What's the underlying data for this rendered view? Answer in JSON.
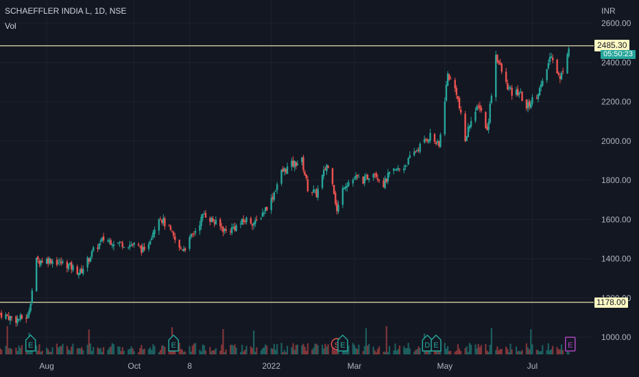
{
  "header": {
    "symbol": "SCHAEFFLER INDIA L, 1D, NSE",
    "volume_label": "Vol",
    "currency": "INR"
  },
  "price_tags": {
    "last_price": "2485.30",
    "countdown": "05:50:23",
    "level_low": "1178.00"
  },
  "colors": {
    "background": "#131722",
    "up": "#26a69a",
    "down": "#ef5350",
    "level_line": "#fff9c4",
    "earnings_badge": "#26a69a",
    "split_badge": "#ef5350",
    "future_earnings_badge": "#ab47bc"
  },
  "event_badges": [
    {
      "letter": "E",
      "kind": "earnings",
      "date": "2021-07-22"
    },
    {
      "letter": "E",
      "kind": "earnings",
      "date": "2021-10-28"
    },
    {
      "letter": "S",
      "kind": "split",
      "date": "2022-02-17"
    },
    {
      "letter": "E",
      "kind": "earnings",
      "date": "2022-02-21"
    },
    {
      "letter": "D",
      "kind": "dividend",
      "date": "2022-04-20"
    },
    {
      "letter": "E",
      "kind": "earnings",
      "date": "2022-04-26"
    },
    {
      "letter": "E",
      "kind": "future-earnings",
      "date": "2022-07-27"
    }
  ],
  "chart_data": {
    "type": "candlestick",
    "title": "SCHAEFFLER INDIA L, 1D, NSE",
    "ylabel": "INR",
    "ylim": [
      950,
      2620
    ],
    "y_ticks": [
      1000,
      1200,
      1400,
      1600,
      1800,
      2000,
      2200,
      2400,
      2600
    ],
    "y_tick_labels": [
      "1000.00",
      "1200.00",
      "1400.00",
      "1600.00",
      "1800.00",
      "2000.00",
      "2200.00",
      "2400.00",
      "2600.00"
    ],
    "x_tick_labels": [
      "Aug",
      "Oct",
      "8",
      "2022",
      "Mar",
      "May",
      "Jul"
    ],
    "horizontal_levels": [
      2485.3,
      1178.0
    ],
    "last_price": 2485.3,
    "series": [
      {
        "name": "Price",
        "points": [
          [
            "2021-07-01",
            1120
          ],
          [
            "2021-07-12",
            1090
          ],
          [
            "2021-07-20",
            1105
          ],
          [
            "2021-07-22",
            1190
          ],
          [
            "2021-07-26",
            1390
          ],
          [
            "2021-08-04",
            1395
          ],
          [
            "2021-08-16",
            1370
          ],
          [
            "2021-08-25",
            1330
          ],
          [
            "2021-09-03",
            1440
          ],
          [
            "2021-09-10",
            1500
          ],
          [
            "2021-09-20",
            1480
          ],
          [
            "2021-10-01",
            1470
          ],
          [
            "2021-10-06",
            1450
          ],
          [
            "2021-10-08",
            1430
          ],
          [
            "2021-10-18",
            1620
          ],
          [
            "2021-10-25",
            1550
          ],
          [
            "2021-11-01",
            1450
          ],
          [
            "2021-11-05",
            1460
          ],
          [
            "2021-11-12",
            1545
          ],
          [
            "2021-11-18",
            1630
          ],
          [
            "2021-11-26",
            1580
          ],
          [
            "2021-12-03",
            1540
          ],
          [
            "2021-12-10",
            1565
          ],
          [
            "2021-12-17",
            1600
          ],
          [
            "2021-12-23",
            1580
          ],
          [
            "2022-01-03",
            1700
          ],
          [
            "2022-01-10",
            1840
          ],
          [
            "2022-01-17",
            1880
          ],
          [
            "2022-01-24",
            1900
          ],
          [
            "2022-01-28",
            1760
          ],
          [
            "2022-02-03",
            1730
          ],
          [
            "2022-02-10",
            1880
          ],
          [
            "2022-02-14",
            1800
          ],
          [
            "2022-02-17",
            1640
          ],
          [
            "2022-02-22",
            1780
          ],
          [
            "2022-03-02",
            1810
          ],
          [
            "2022-03-08",
            1800
          ],
          [
            "2022-03-14",
            1850
          ],
          [
            "2022-03-21",
            1780
          ],
          [
            "2022-03-25",
            1830
          ],
          [
            "2022-04-04",
            1870
          ],
          [
            "2022-04-12",
            1950
          ],
          [
            "2022-04-22",
            2030
          ],
          [
            "2022-04-28",
            1970
          ],
          [
            "2022-05-04",
            2340
          ],
          [
            "2022-05-10",
            2250
          ],
          [
            "2022-05-16",
            2000
          ],
          [
            "2022-05-20",
            2120
          ],
          [
            "2022-05-26",
            2180
          ],
          [
            "2022-05-31",
            2050
          ],
          [
            "2022-06-06",
            2440
          ],
          [
            "2022-06-13",
            2290
          ],
          [
            "2022-06-17",
            2240
          ],
          [
            "2022-06-22",
            2250
          ],
          [
            "2022-06-27",
            2170
          ],
          [
            "2022-07-04",
            2240
          ],
          [
            "2022-07-08",
            2290
          ],
          [
            "2022-07-14",
            2450
          ],
          [
            "2022-07-20",
            2310
          ],
          [
            "2022-07-26",
            2485.3
          ]
        ]
      }
    ]
  }
}
